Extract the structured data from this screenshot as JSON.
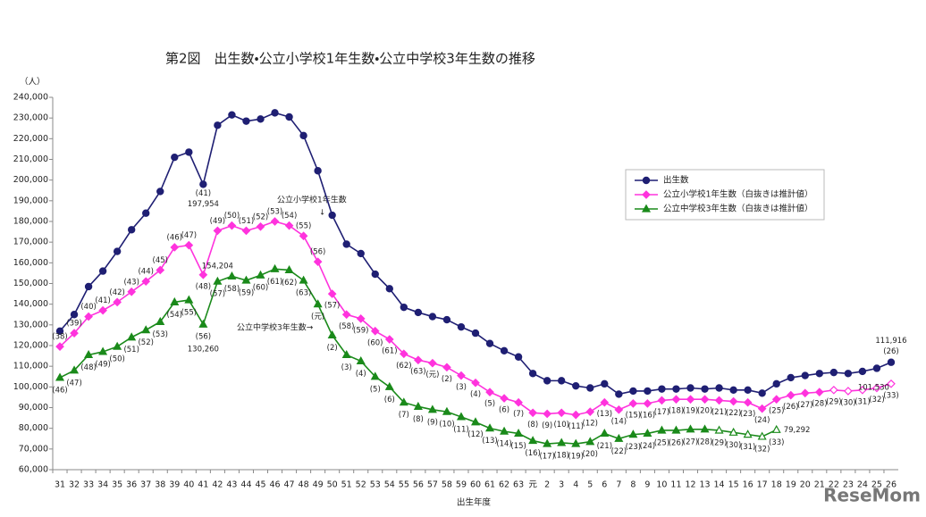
{
  "chart_data": {
    "type": "line",
    "title": "第2図　出生数・公立小学校1年生数・公立中学校3年生数の推移",
    "y_unit": "（人）",
    "x_label": "出生年度",
    "watermark": "ReseMom",
    "annotations": [
      "公立小学校1年生数",
      "↓",
      "公立中学校3年生数→"
    ],
    "categories": [
      "31",
      "32",
      "33",
      "34",
      "35",
      "36",
      "37",
      "38",
      "39",
      "40",
      "41",
      "42",
      "43",
      "44",
      "45",
      "46",
      "47",
      "48",
      "49",
      "50",
      "51",
      "52",
      "53",
      "54",
      "55",
      "56",
      "57",
      "58",
      "59",
      "60",
      "61",
      "62",
      "63",
      "元",
      "2",
      "3",
      "4",
      "5",
      "6",
      "7",
      "8",
      "9",
      "10",
      "11",
      "12",
      "13",
      "14",
      "15",
      "16",
      "17",
      "18",
      "19",
      "20",
      "21",
      "22",
      "23",
      "24",
      "25",
      "26"
    ],
    "ylim": [
      60000,
      240000
    ],
    "yticks": [
      {
        "value": 60000,
        "label": "60,000"
      },
      {
        "value": 70000,
        "label": "70,000"
      },
      {
        "value": 80000,
        "label": "80,000"
      },
      {
        "value": 90000,
        "label": "90,000"
      },
      {
        "value": 100000,
        "label": "100,000"
      },
      {
        "value": 110000,
        "label": "110,000"
      },
      {
        "value": 120000,
        "label": "120,000"
      },
      {
        "value": 130000,
        "label": "130,000"
      },
      {
        "value": 140000,
        "label": "140,000"
      },
      {
        "value": 150000,
        "label": "150,000"
      },
      {
        "value": 160000,
        "label": "160,000"
      },
      {
        "value": 170000,
        "label": "170,000"
      },
      {
        "value": 180000,
        "label": "180,000"
      },
      {
        "value": 190000,
        "label": "190,000"
      },
      {
        "value": 200000,
        "label": "200,000"
      },
      {
        "value": 210000,
        "label": "210,000"
      },
      {
        "value": 220000,
        "label": "220,000"
      },
      {
        "value": 230000,
        "label": "230,000"
      },
      {
        "value": 240000,
        "label": "240,000"
      }
    ],
    "grid": false,
    "legend": "upper right",
    "series": [
      {
        "name": "出生数",
        "color": "#1f1f73",
        "marker": "circle",
        "values": [
          127000,
          135000,
          148500,
          156000,
          165500,
          176000,
          184000,
          194500,
          211000,
          213500,
          197954,
          226500,
          231500,
          228500,
          229500,
          232500,
          230500,
          221500,
          204500,
          183000,
          169000,
          164500,
          154500,
          147500,
          138500,
          136000,
          134000,
          132500,
          129000,
          126000,
          121000,
          117500,
          114500,
          106500,
          103000,
          103000,
          100500,
          99500,
          101500,
          96500,
          98000,
          98000,
          99000,
          99000,
          99500,
          99000,
          99500,
          98500,
          98500,
          97000,
          101500,
          104500,
          105500,
          106500,
          107000,
          106500,
          107500,
          109000,
          111916
        ],
        "value_labels": [
          null,
          null,
          null,
          null,
          null,
          null,
          null,
          null,
          null,
          null,
          "197,954",
          null,
          null,
          null,
          null,
          null,
          null,
          null,
          null,
          null,
          null,
          null,
          null,
          null,
          null,
          null,
          null,
          null,
          null,
          null,
          null,
          null,
          null,
          null,
          null,
          null,
          null,
          null,
          null,
          null,
          null,
          null,
          null,
          null,
          null,
          null,
          null,
          null,
          null,
          null,
          null,
          null,
          null,
          null,
          null,
          null,
          null,
          null,
          "111,916"
        ],
        "point_labels": [
          null,
          null,
          null,
          null,
          null,
          null,
          null,
          null,
          null,
          null,
          "(41)",
          null,
          null,
          null,
          null,
          null,
          null,
          null,
          null,
          null,
          null,
          null,
          null,
          null,
          null,
          null,
          null,
          null,
          null,
          null,
          null,
          null,
          null,
          null,
          null,
          null,
          null,
          null,
          null,
          null,
          null,
          null,
          null,
          null,
          null,
          null,
          null,
          null,
          null,
          null,
          null,
          null,
          null,
          null,
          null,
          null,
          null,
          null,
          "(26)"
        ]
      },
      {
        "name": "公立小学校1年生数（白抜きは推計値）",
        "color": "#ff33dd",
        "marker": "diamond",
        "estimated_from": "22",
        "values": [
          119500,
          126000,
          134000,
          137000,
          141000,
          146000,
          151000,
          156500,
          167500,
          168500,
          154204,
          175500,
          178000,
          175500,
          177500,
          180000,
          178000,
          173000,
          160500,
          145000,
          135000,
          133000,
          127000,
          123000,
          116000,
          113000,
          111500,
          109500,
          105500,
          102000,
          97500,
          94500,
          92500,
          87500,
          87000,
          87500,
          86500,
          88000,
          92500,
          89000,
          92000,
          92000,
          93500,
          94000,
          94000,
          94000,
          93500,
          93000,
          92500,
          89500,
          94000,
          96000,
          97000,
          97500,
          98500,
          98000,
          98500,
          99500,
          101530
        ],
        "value_labels": [
          null,
          null,
          null,
          null,
          null,
          null,
          null,
          null,
          null,
          null,
          "154,204",
          null,
          null,
          null,
          null,
          null,
          null,
          null,
          null,
          null,
          null,
          null,
          null,
          null,
          null,
          null,
          null,
          null,
          null,
          null,
          null,
          null,
          null,
          null,
          null,
          null,
          null,
          null,
          null,
          null,
          null,
          null,
          null,
          null,
          null,
          null,
          null,
          null,
          null,
          null,
          null,
          null,
          null,
          null,
          null,
          null,
          null,
          null,
          "101,530"
        ],
        "point_labels": [
          "(38)",
          "(39)",
          "(40)",
          "(41)",
          "(42)",
          "(43)",
          "(44)",
          "(45)",
          "(46)",
          "(47)",
          "(48)",
          "(49)",
          "(50)",
          "(51)",
          "(52)",
          "(53)",
          "(54)",
          "(55)",
          "(56)",
          "(57)",
          "(58)",
          "(59)",
          "(60)",
          "(61)",
          "(62)",
          "(63)",
          "(元)",
          "(2)",
          "(3)",
          "(4)",
          "(5)",
          "(6)",
          "(7)",
          "(8)",
          "(9)",
          "(10)",
          "(11)",
          "(12)",
          "(13)",
          "(14)",
          "(15)",
          "(16)",
          "(17)",
          "(18)",
          "(19)",
          "(20)",
          "(21)",
          "(22)",
          "(23)",
          "(24)",
          "(25)",
          "(26)",
          "(27)",
          "(28)",
          "(29)",
          "(30)",
          "(31)",
          "(32)",
          "(33)"
        ]
      },
      {
        "name": "公立中学校3年生数（白抜きは推計値）",
        "color": "#1a8a1a",
        "marker": "triangle",
        "estimated_from": "14",
        "values": [
          104500,
          108000,
          115500,
          117000,
          119500,
          124000,
          127500,
          131500,
          141000,
          142000,
          130260,
          151000,
          153500,
          151500,
          154000,
          157000,
          156500,
          151500,
          140000,
          125000,
          115500,
          112500,
          105000,
          100000,
          92500,
          90500,
          89000,
          88000,
          85500,
          83000,
          80000,
          78500,
          77500,
          74000,
          72500,
          73000,
          72500,
          73500,
          77500,
          75000,
          77000,
          77500,
          79000,
          79000,
          79500,
          79500,
          79000,
          78000,
          77000,
          76000,
          79292,
          null,
          null,
          null,
          null,
          null,
          null,
          null,
          null
        ],
        "value_labels": [
          null,
          null,
          null,
          null,
          null,
          null,
          null,
          null,
          null,
          null,
          "130,260",
          null,
          null,
          null,
          null,
          null,
          null,
          null,
          null,
          null,
          null,
          null,
          null,
          null,
          null,
          null,
          null,
          null,
          null,
          null,
          null,
          null,
          null,
          null,
          null,
          null,
          null,
          null,
          null,
          null,
          null,
          null,
          null,
          null,
          null,
          null,
          null,
          null,
          null,
          null,
          "79,292",
          null,
          null,
          null,
          null,
          null,
          null,
          null,
          null
        ],
        "point_labels": [
          "(46)",
          "(47)",
          "(48)",
          "(49)",
          "(50)",
          "(51)",
          "(52)",
          "(53)",
          "(54)",
          "(55)",
          "(56)",
          "(57)",
          "(58)",
          "(59)",
          "(60)",
          "(61)",
          "(62)",
          "(63)",
          "(元)",
          "(2)",
          "(3)",
          "(4)",
          "(5)",
          "(6)",
          "(7)",
          "(8)",
          "(9)",
          "(10)",
          "(11)",
          "(12)",
          "(13)",
          "(14)",
          "(15)",
          "(16)",
          "(17)",
          "(18)",
          "(19)",
          "(20)",
          "(21)",
          "(22)",
          "(23)",
          "(24)",
          "(25)",
          "(26)",
          "(27)",
          "(28)",
          "(29)",
          "(30)",
          "(31)",
          "(32)",
          "(33)",
          null,
          null,
          null,
          null,
          null,
          null,
          null,
          null
        ]
      }
    ]
  }
}
